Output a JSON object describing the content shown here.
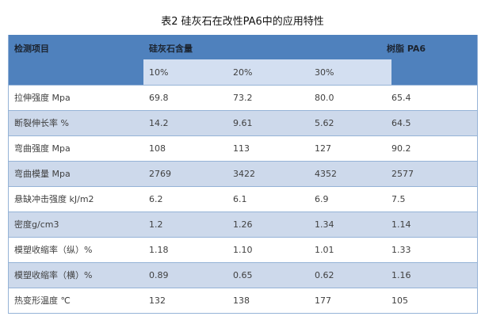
{
  "title": "表2 硅灰石在改性PA6中的应用特性",
  "table": {
    "header": {
      "col_item": "检测项目",
      "col_group": "硅灰石含量",
      "col_resin": "树脂 PA6",
      "subcols": [
        "10%",
        "20%",
        "30%"
      ]
    },
    "rows": [
      {
        "label": "拉伸强度 Mpa",
        "values": [
          "69.8",
          "73.2",
          "80.0",
          "65.4"
        ]
      },
      {
        "label": "断裂伸长率 %",
        "values": [
          "14.2",
          "9.61",
          "5.62",
          "64.5"
        ]
      },
      {
        "label": "弯曲强度 Mpa",
        "values": [
          "108",
          "113",
          "127",
          "90.2"
        ]
      },
      {
        "label": "弯曲模量 Mpa",
        "values": [
          "2769",
          "3422",
          "4352",
          "2577"
        ]
      },
      {
        "label": "悬缺冲击强度 kJ/m2",
        "values": [
          "6.2",
          "6.1",
          "6.9",
          "7.5"
        ]
      },
      {
        "label": "密度g/cm3",
        "values": [
          "1.2",
          "1.26",
          "1.34",
          "1.14"
        ]
      },
      {
        "label": "模塑收缩率（纵）%",
        "values": [
          "1.18",
          "1.10",
          "1.01",
          "1.33"
        ]
      },
      {
        "label": "模塑收缩率（横）%",
        "values": [
          "0.89",
          "0.65",
          "0.62",
          "1.16"
        ]
      },
      {
        "label": "热变形温度 ℃",
        "values": [
          "132",
          "138",
          "177",
          "105"
        ]
      }
    ]
  },
  "colors": {
    "header_bg": "#4f81bd",
    "subheader_bg": "#d3dff1",
    "alt_row_bg": "#cdd9eb",
    "border": "#95b3d7",
    "header_text": "#1c2430",
    "body_text": "#404040",
    "title_text": "#111111"
  }
}
